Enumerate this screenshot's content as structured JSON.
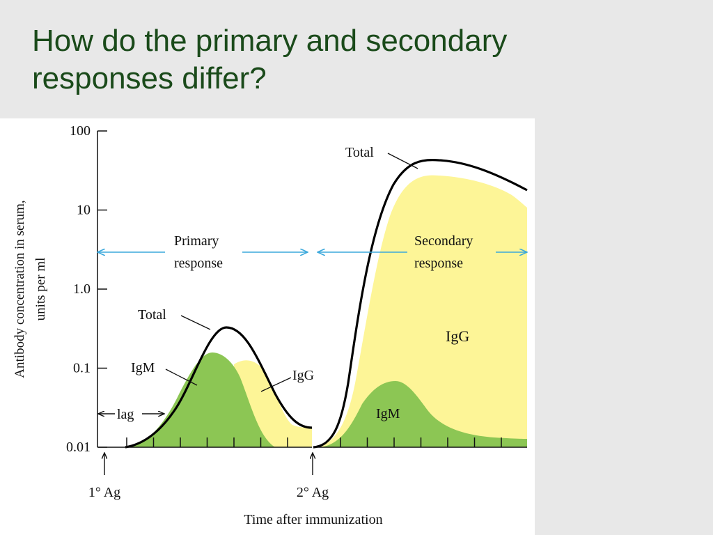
{
  "slide": {
    "title_line1": "How do the primary and secondary",
    "title_line2": "responses differ?"
  },
  "colors": {
    "title": "#1a4a1a",
    "igm_fill": "#8cc654",
    "igg_fill": "#fdf597",
    "total_line": "#000000",
    "arrow": "#3aa8dc"
  },
  "chart_data": {
    "type": "area",
    "y_scale": "log",
    "ylim": [
      0.01,
      100
    ],
    "y_ticks": [
      "100",
      "10",
      "1.0",
      "0.1",
      "0.01"
    ],
    "ylabel_line1": "Antibody concentration in serum,",
    "ylabel_line2": "units per ml",
    "xlabel": "Time after immunization",
    "x_markers": [
      "1° Ag",
      "2° Ag"
    ],
    "phases": [
      "Primary response",
      "Secondary response"
    ],
    "phase_labels": {
      "primary_1": "Primary",
      "primary_2": "response",
      "secondary_1": "Secondary",
      "secondary_2": "response"
    },
    "lag_label": "lag",
    "curve_labels": {
      "primary_total": "Total",
      "primary_igm": "IgM",
      "primary_igg": "IgG",
      "secondary_total": "Total",
      "secondary_igg": "IgG",
      "secondary_igm": "IgM"
    },
    "series": [
      {
        "name": "Total",
        "x": [
          0.3,
          1,
          2,
          3,
          4,
          5,
          6,
          7,
          8,
          9,
          10.5
        ],
        "values": [
          0.01,
          0.012,
          0.018,
          0.05,
          0.15,
          0.33,
          0.25,
          0.08,
          0.035,
          0.02,
          0.018
        ]
      },
      {
        "name": "IgM",
        "x": [
          1,
          2,
          3,
          4,
          5,
          6,
          7,
          8
        ],
        "values": [
          0.01,
          0.012,
          0.04,
          0.12,
          0.16,
          0.08,
          0.025,
          0.01
        ]
      },
      {
        "name": "IgG",
        "x": [
          6,
          7,
          8,
          9,
          10.5
        ],
        "values": [
          0.12,
          0.11,
          0.04,
          0.018,
          0.018
        ]
      },
      {
        "name": "Total",
        "x": [
          10.5,
          11,
          12,
          13,
          14,
          15,
          16,
          17,
          18,
          19,
          21
        ],
        "values": [
          0.01,
          0.012,
          0.1,
          2,
          15,
          35,
          45,
          42,
          35,
          28,
          18
        ]
      },
      {
        "name": "IgG",
        "x": [
          10.5,
          11,
          12,
          13,
          14,
          15,
          16,
          17,
          18,
          19,
          21
        ],
        "values": [
          0.01,
          0.011,
          0.03,
          0.3,
          5,
          20,
          28,
          26,
          20,
          14,
          10
        ]
      },
      {
        "name": "IgM",
        "x": [
          10.5,
          11,
          12,
          13,
          14,
          15,
          16,
          17,
          18,
          19,
          21
        ],
        "values": [
          0.01,
          0.01,
          0.015,
          0.04,
          0.065,
          0.05,
          0.025,
          0.016,
          0.013,
          0.012,
          0.012
        ]
      }
    ]
  }
}
